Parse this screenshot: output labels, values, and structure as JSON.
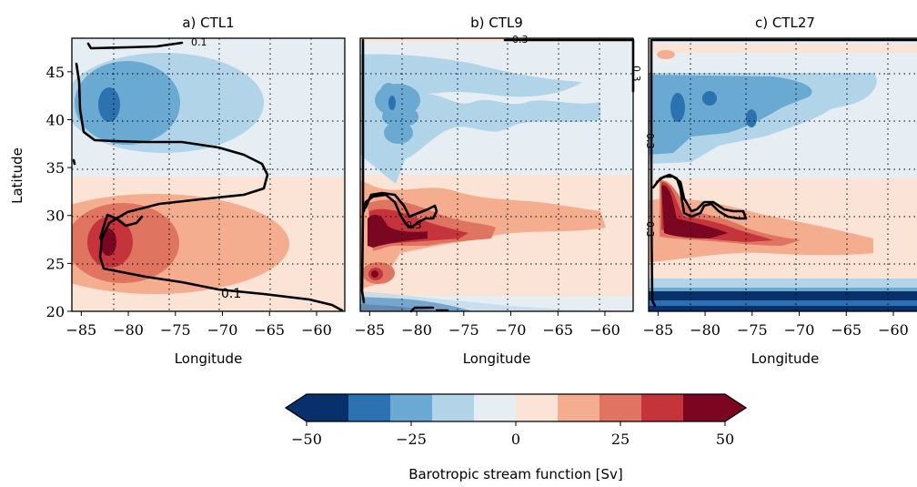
{
  "colors": {
    "levels": [
      "#08306b",
      "#2c72b0",
      "#69a9d2",
      "#b2d4e8",
      "#e6eef4",
      "#fbe3d5",
      "#f4ad8f",
      "#df7461",
      "#c4343a",
      "#7b0622"
    ]
  },
  "chart_data": {
    "type": "heatmap",
    "shared_colorbar": {
      "label": "Barotropic stream function [Sv]",
      "ticks": [
        -50,
        -25,
        0,
        25,
        50
      ],
      "tick_labels": [
        "−50",
        "−25",
        "0",
        "25",
        "50"
      ],
      "levels": [
        -50,
        -40,
        -30,
        -20,
        -10,
        0,
        10,
        20,
        30,
        40,
        50
      ],
      "extend": "both"
    },
    "panels": [
      {
        "title": "a) CTL1",
        "xlabel": "Longitude",
        "ylabel": "Latitude",
        "xlim": [
          -86,
          -57
        ],
        "ylim": [
          20,
          48.5
        ],
        "xticks": [
          -85,
          -80,
          -75,
          -70,
          -65,
          -60
        ],
        "xtick_labels": [
          "−85",
          "−80",
          "−75",
          "−70",
          "−65",
          "−60"
        ],
        "yticks": [
          20,
          25,
          30,
          35,
          40,
          45
        ],
        "ytick_labels": [
          "20",
          "25",
          "30",
          "35",
          "40",
          "45"
        ],
        "grid": true,
        "contour_labels": [
          "0.1",
          "0.1"
        ],
        "field_features": [
          {
            "sign": "negative",
            "lon": -81,
            "lat": 41.5,
            "peak_sv": -40
          },
          {
            "sign": "positive",
            "lon": -82,
            "lat": 27.5,
            "peak_sv": 40
          }
        ]
      },
      {
        "title": "b) CTL9",
        "xlabel": "Longitude",
        "ylabel": "",
        "xlim": [
          -86,
          -57
        ],
        "ylim": [
          20,
          48.5
        ],
        "xticks": [
          -85,
          -80,
          -75,
          -70,
          -65,
          -60
        ],
        "xtick_labels": [
          "−85",
          "−80",
          "−75",
          "−70",
          "−65",
          "−60"
        ],
        "grid": true,
        "contour_labels": [
          "0.3",
          "0.3",
          "0.3"
        ],
        "field_features": [
          {
            "sign": "negative",
            "lon": -80,
            "lat": 41,
            "peak_sv": -30
          },
          {
            "sign": "positive",
            "lon": -82,
            "lat": 28,
            "peak_sv": 50
          },
          {
            "sign": "positive",
            "lon": -83.5,
            "lat": 24,
            "peak_sv": 40
          }
        ]
      },
      {
        "title": "c) CTL27",
        "xlabel": "Longitude",
        "ylabel": "",
        "xlim": [
          -86,
          -57
        ],
        "ylim": [
          20,
          48.5
        ],
        "xticks": [
          -85,
          -80,
          -75,
          -70,
          -65,
          -60
        ],
        "xtick_labels": [
          "−85",
          "−80",
          "−75",
          "−70",
          "−65",
          "−60"
        ],
        "grid": true,
        "contour_labels": [
          "0.3",
          "0.3"
        ],
        "field_features": [
          {
            "sign": "negative",
            "lon": -80,
            "lat": 41,
            "peak_sv": -30
          },
          {
            "sign": "positive",
            "lon": -82,
            "lat": 29,
            "peak_sv": 50
          },
          {
            "sign": "negative",
            "lon": -72,
            "lat": 21,
            "peak_sv": -50
          }
        ]
      }
    ]
  }
}
